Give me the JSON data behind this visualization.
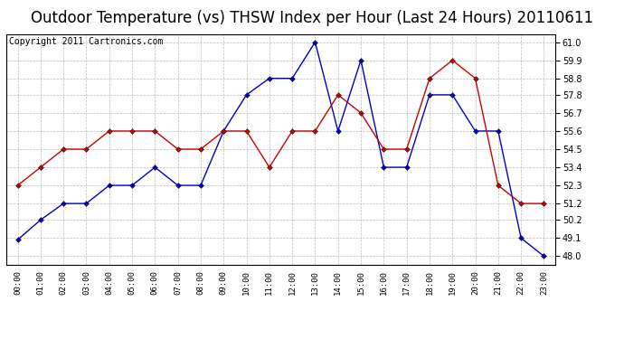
{
  "title": "Outdoor Temperature (vs) THSW Index per Hour (Last 24 Hours) 20110611",
  "copyright": "Copyright 2011 Cartronics.com",
  "hours": [
    0,
    1,
    2,
    3,
    4,
    5,
    6,
    7,
    8,
    9,
    10,
    11,
    12,
    13,
    14,
    15,
    16,
    17,
    18,
    19,
    20,
    21,
    22,
    23
  ],
  "hour_labels": [
    "00:00",
    "01:00",
    "02:00",
    "03:00",
    "04:00",
    "05:00",
    "06:00",
    "07:00",
    "08:00",
    "09:00",
    "10:00",
    "11:00",
    "12:00",
    "13:00",
    "14:00",
    "15:00",
    "16:00",
    "17:00",
    "18:00",
    "19:00",
    "20:00",
    "21:00",
    "22:00",
    "23:00"
  ],
  "blue_data": [
    49.0,
    50.2,
    51.2,
    51.2,
    52.3,
    52.3,
    53.4,
    52.3,
    52.3,
    55.6,
    57.8,
    58.8,
    58.8,
    61.0,
    55.6,
    59.9,
    53.4,
    53.4,
    57.8,
    57.8,
    55.6,
    55.6,
    49.1,
    48.0
  ],
  "red_data": [
    52.3,
    53.4,
    54.5,
    54.5,
    55.6,
    55.6,
    55.6,
    54.5,
    54.5,
    55.6,
    55.6,
    53.4,
    55.6,
    55.6,
    57.8,
    56.7,
    54.5,
    54.5,
    58.8,
    59.9,
    58.8,
    52.3,
    51.2,
    51.2
  ],
  "blue_color": "#0000cc",
  "red_color": "#cc0000",
  "bg_color": "#ffffff",
  "grid_color": "#aaaaaa",
  "ylim_min": 47.5,
  "ylim_max": 61.5,
  "yticks": [
    48.0,
    49.1,
    50.2,
    51.2,
    52.3,
    53.4,
    54.5,
    55.6,
    56.7,
    57.8,
    58.8,
    59.9,
    61.0
  ],
  "title_fontsize": 12,
  "copyright_fontsize": 7,
  "marker_size": 3,
  "linewidth": 1.0
}
